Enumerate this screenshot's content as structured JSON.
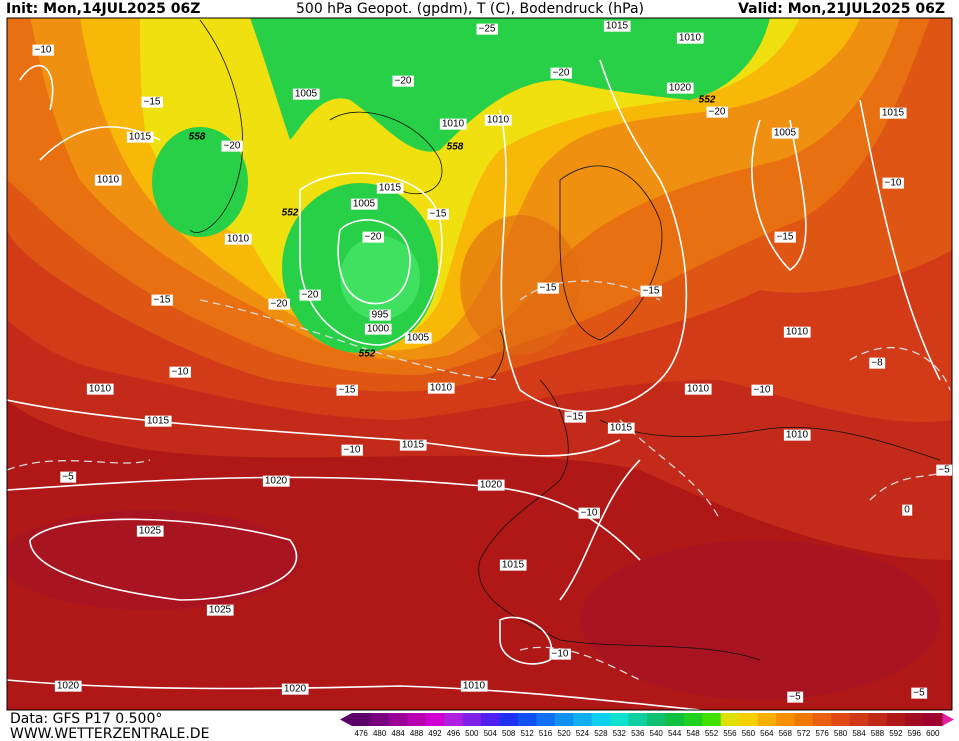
{
  "header": {
    "init": "Init: Mon,14JUL2025 06Z",
    "title": "500 hPa Geopot. (gpdm), T (C), Bodendruck (hPa)",
    "valid": "Valid: Mon,21JUL2025 06Z"
  },
  "footer": {
    "data": "Data: GFS P17 0.500°",
    "site": "WWW.WETTERZENTRALE.DE"
  },
  "pressure_labels": [
    "1015",
    "1010",
    "1020",
    "1005",
    "1010",
    "1010",
    "1015",
    "1005",
    "1015",
    "1010",
    "1015",
    "1005",
    "1010",
    "995",
    "1000",
    "1005",
    "1010",
    "1010",
    "1010",
    "1010",
    "1015",
    "1015",
    "1010",
    "1015",
    "1020",
    "1020",
    "1025",
    "1015",
    "1025",
    "1020",
    "1020",
    "1010"
  ],
  "temperature_labels": [
    "−25",
    "−20",
    "−20",
    "−10",
    "−15",
    "−20",
    "−20",
    "−10",
    "−15",
    "−20",
    "−15",
    "−15",
    "−20",
    "−20",
    "−15",
    "−15",
    "−10",
    "−15",
    "−8",
    "−10",
    "−15",
    "−10",
    "−5",
    "−5",
    "0",
    "−10",
    "−10",
    "−5",
    "−5"
  ],
  "geopotential_labels": [
    "558",
    "558",
    "552",
    "552",
    "552"
  ],
  "legend": {
    "levels": [
      476,
      480,
      484,
      488,
      492,
      496,
      500,
      504,
      508,
      512,
      516,
      520,
      524,
      528,
      532,
      536,
      540,
      544,
      548,
      552,
      556,
      560,
      564,
      568,
      572,
      576,
      580,
      584,
      588,
      592,
      596,
      600
    ],
    "colors": [
      "#5a0068",
      "#780080",
      "#9a0098",
      "#b800b0",
      "#d000d0",
      "#b020e0",
      "#8020e8",
      "#5020f0",
      "#2030f0",
      "#1050f0",
      "#1070f0",
      "#1090f0",
      "#10b0f0",
      "#10d0f0",
      "#10e0d0",
      "#10d0a0",
      "#10c070",
      "#10c040",
      "#20d020",
      "#40e000",
      "#e0e000",
      "#f8d000",
      "#f8b000",
      "#f89000",
      "#f07800",
      "#e86010",
      "#e04818",
      "#d03818",
      "#c02818",
      "#b01818",
      "#a00c20",
      "#a00030"
    ]
  }
}
